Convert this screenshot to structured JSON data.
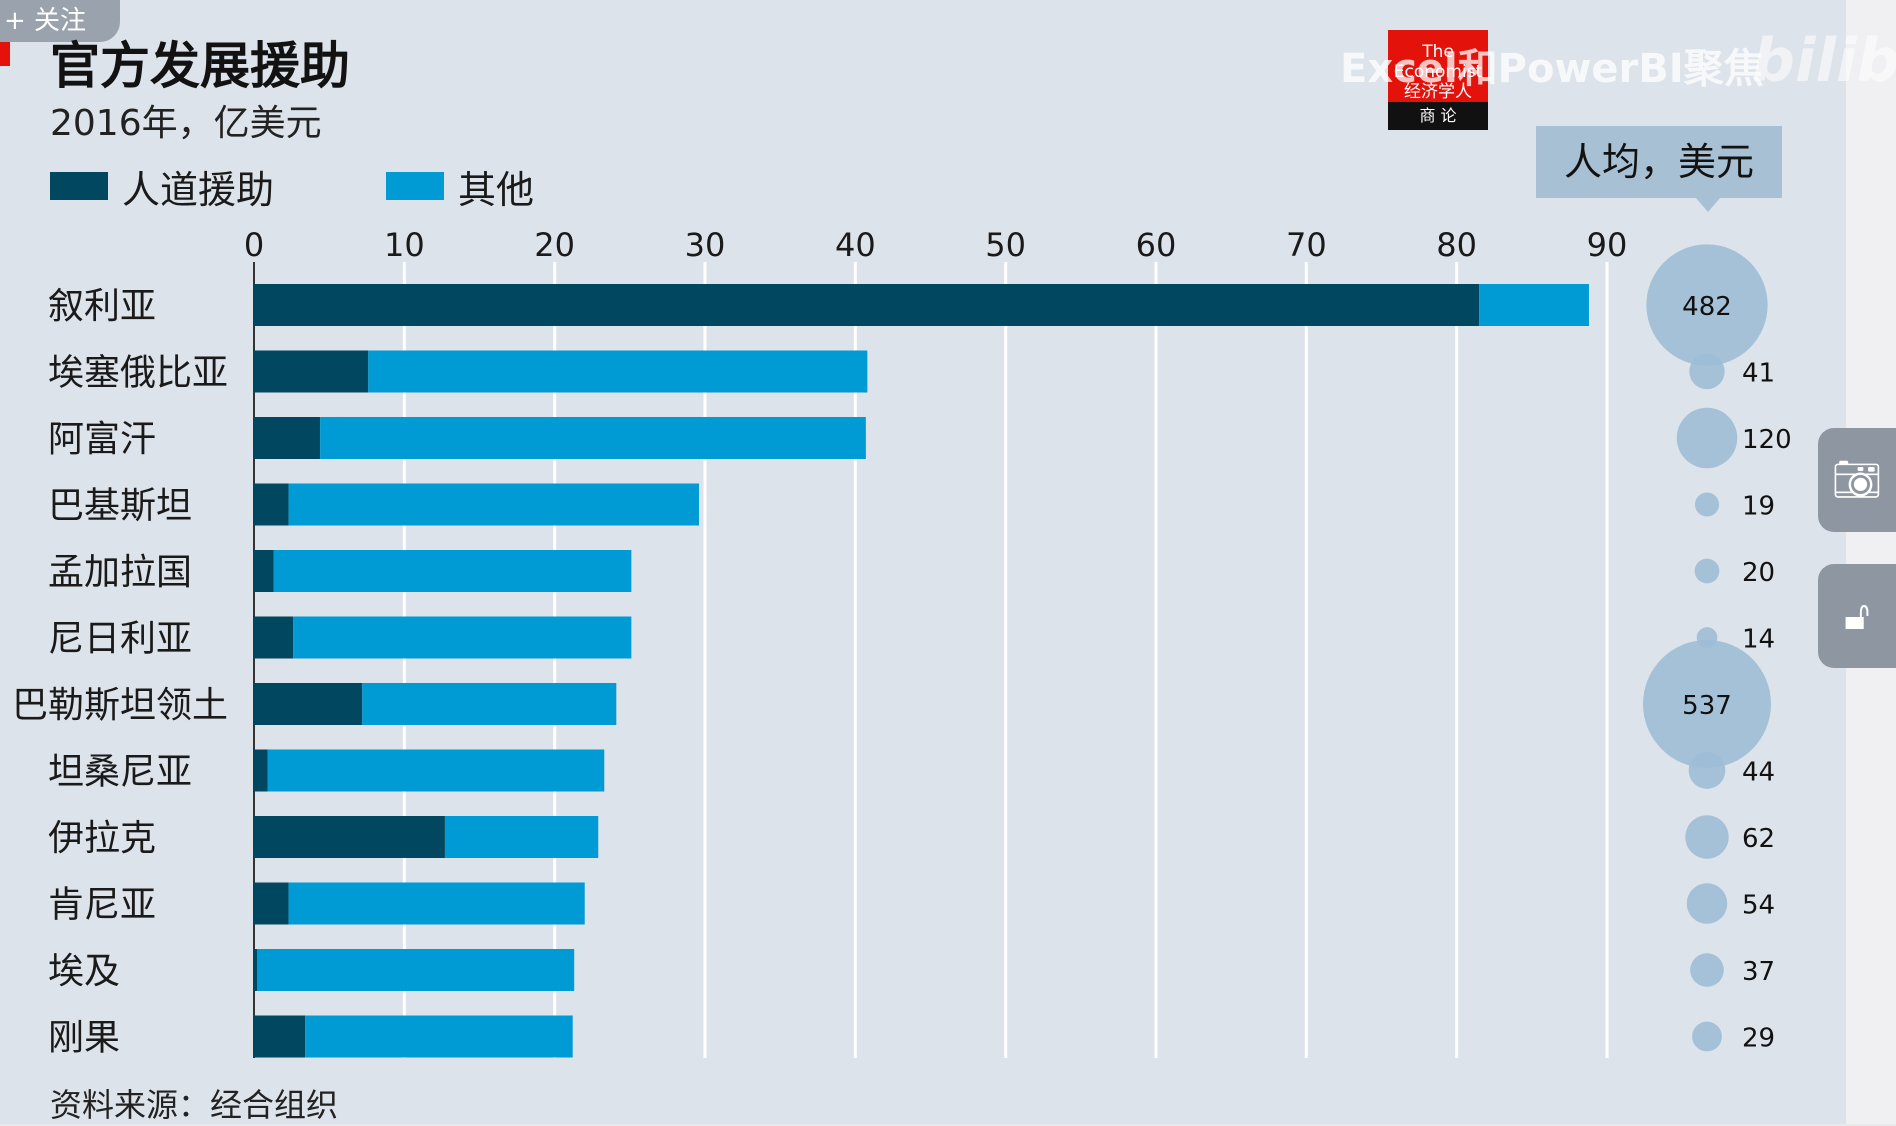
{
  "page": {
    "follow_button": "+ 关注",
    "watermark": "Excel和PowerBI聚焦",
    "watermark_brand": "bilibili",
    "logo_top": "The Economist 经济学人",
    "logo_bottom": "商 论",
    "camera_icon": "camera-icon",
    "lock_icon": "unlock-icon"
  },
  "colors": {
    "humanitarian": "#00475f",
    "other": "#009ad4",
    "bubble": "#9dbdd6",
    "gridline": "#ffffff"
  },
  "chart_data": {
    "type": "bar",
    "orientation": "horizontal",
    "stacked": true,
    "title": "官方发展援助",
    "subtitle": "2016年，亿美元",
    "xlim": [
      0,
      90
    ],
    "x_ticks": [
      "0",
      "10",
      "20",
      "30",
      "40",
      "50",
      "60",
      "70",
      "80",
      "90"
    ],
    "grid": true,
    "legend_position": "top-left",
    "categories": [
      "叙利亚",
      "埃塞俄比亚",
      "阿富汗",
      "巴基斯坦",
      "孟加拉国",
      "尼日利亚",
      "巴勒斯坦领土",
      "坦桑尼亚",
      "伊拉克",
      "肯尼亚",
      "埃及",
      "刚果"
    ],
    "series": [
      {
        "name": "人道援助",
        "values": [
          81.5,
          7.6,
          4.4,
          2.3,
          1.3,
          2.6,
          7.2,
          0.9,
          12.7,
          2.3,
          0.2,
          3.4
        ]
      },
      {
        "name": "其他",
        "values": [
          7.3,
          33.2,
          36.3,
          27.3,
          23.8,
          22.5,
          16.9,
          22.4,
          10.2,
          19.7,
          21.1,
          17.8
        ]
      }
    ],
    "per_capita": {
      "label": "人均，美元",
      "values": [
        482,
        41,
        120,
        19,
        20,
        14,
        537,
        44,
        62,
        54,
        37,
        29
      ]
    },
    "source": "资料来源：经合组织"
  }
}
